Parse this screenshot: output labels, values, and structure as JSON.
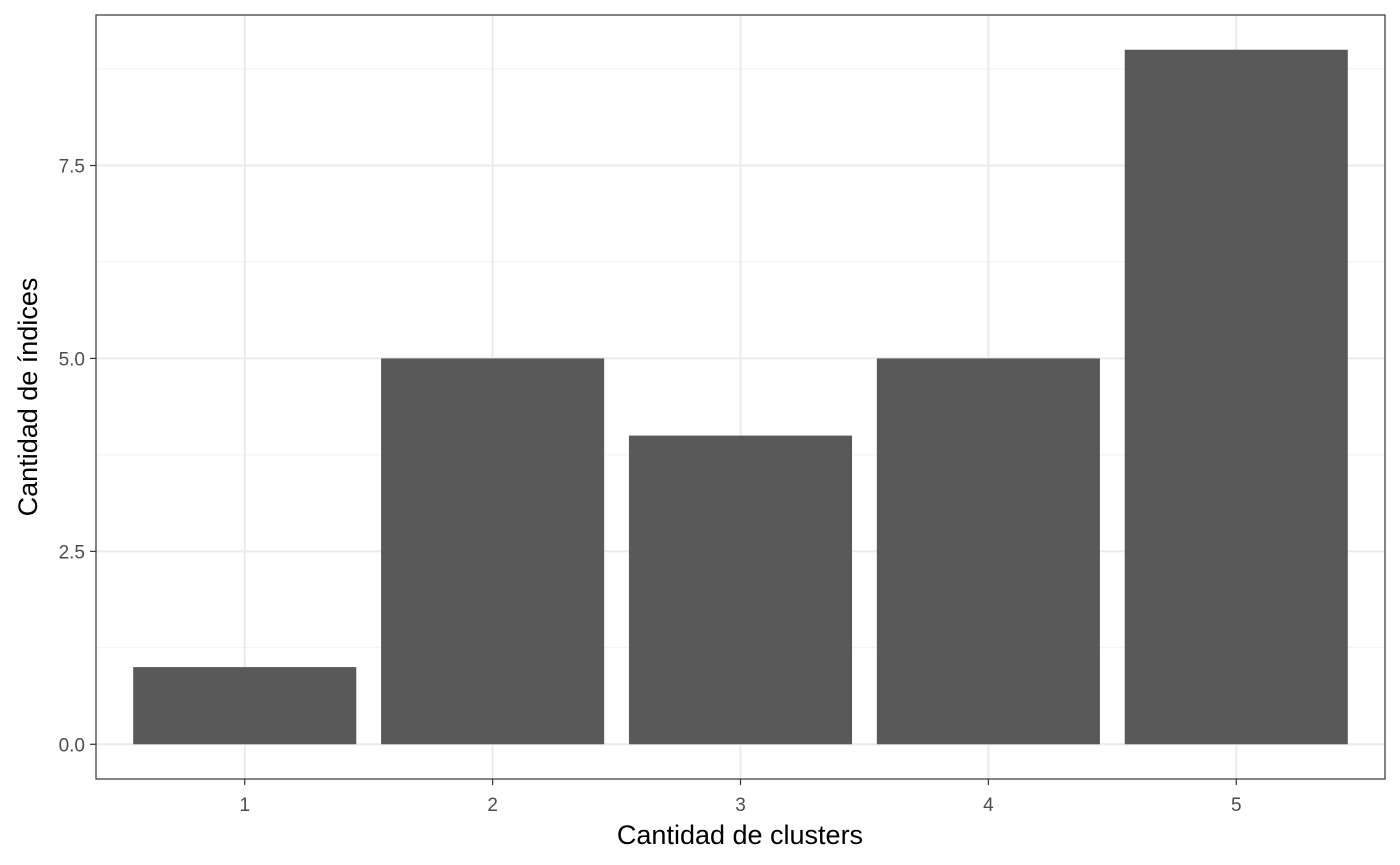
{
  "chart_data": {
    "type": "bar",
    "title": "",
    "xlabel": "Cantidad de clusters",
    "ylabel": "Cantidad de índices",
    "categories": [
      "1",
      "2",
      "3",
      "4",
      "5"
    ],
    "values": [
      1,
      5,
      4,
      5,
      9
    ],
    "ylim": [
      -0.45,
      9.45
    ],
    "yticks": [
      0,
      2.5,
      5,
      7.5
    ],
    "ytick_labels": [
      "0.0",
      "2.5",
      "5.0",
      "7.5"
    ],
    "grid": true,
    "legend": "none",
    "colors": {
      "bar": "#595959",
      "panel_border": "#333333",
      "grid_major": "#ebebeb",
      "grid_minor": "#f2f2f2",
      "background": "#ffffff"
    }
  }
}
